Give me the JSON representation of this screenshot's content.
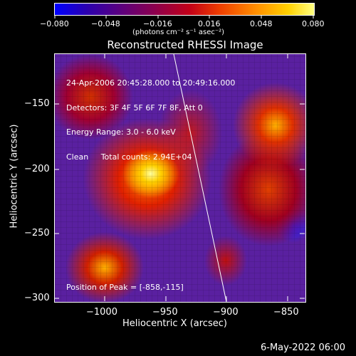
{
  "colorbar": {
    "ticks": [
      "−0.080",
      "−0.048",
      "−0.016",
      "0.016",
      "0.048",
      "0.080"
    ],
    "unit_label": "(photons cm⁻² s⁻¹ asec⁻²)",
    "colors": [
      "#0000ff",
      "#2a00b0",
      "#5a0080",
      "#8a0050",
      "#c20018",
      "#f04000",
      "#ff9000",
      "#ffd000",
      "#ffff80"
    ]
  },
  "plot": {
    "title": "Reconstructed RHESSI Image",
    "xlabel": "Heliocentric X (arcsec)",
    "ylabel": "Heliocentric Y (arcsec)",
    "x_ticks": [
      "−1000",
      "−950",
      "−900",
      "−850"
    ],
    "y_ticks": [
      "−150",
      "−200",
      "−250",
      "−300"
    ],
    "info_lines": [
      "24-Apr-2006 20:45:28.000 to 20:49:16.000",
      "Detectors: 3F 4F 5F 6F 7F 8F, Att 0",
      "Energy Range: 3.0 - 6.0 keV",
      "Clean     Total counts: 2.94E+04"
    ],
    "peak_label": "Position of Peak = [-858,-115]"
  },
  "footer": {
    "date": "6-May-2022 06:00"
  }
}
